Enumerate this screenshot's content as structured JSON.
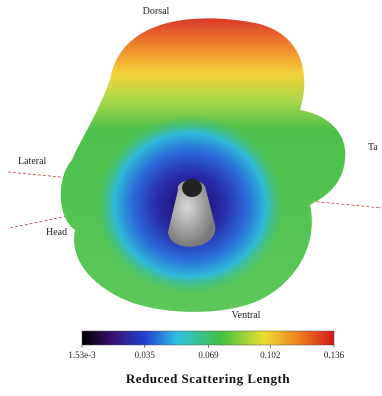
{
  "labels": {
    "top": "Dorsal",
    "left": "Lateral",
    "right": "Ta",
    "lower_left": "Head",
    "bottom": "Ventral"
  },
  "colorbar": {
    "title": "Reduced Scattering Length",
    "lim": [
      0.00153,
      0.136
    ],
    "ticks": [
      {
        "value": 0.00153,
        "label": "1.53e-3"
      },
      0.035,
      0.069,
      0.102,
      0.136
    ]
  }
}
